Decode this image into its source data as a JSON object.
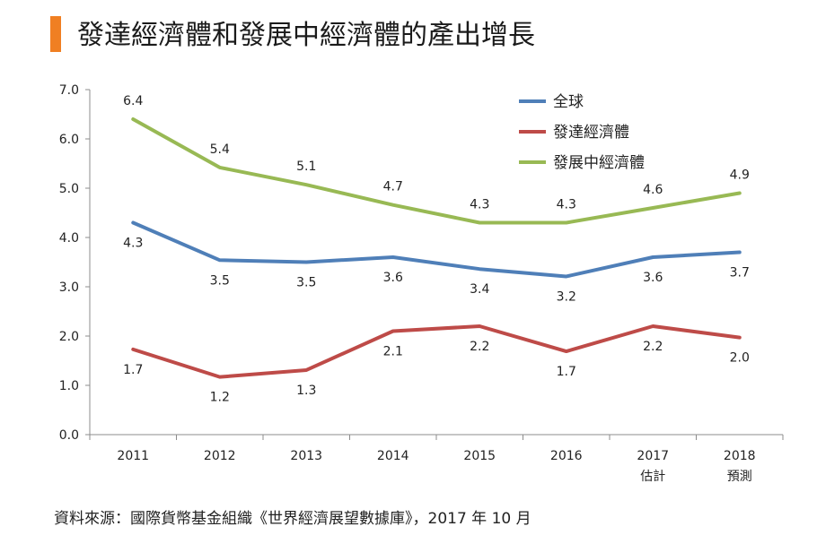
{
  "header": {
    "title": "發達經濟體和發展中經濟體的產出增長",
    "accent_color": "#f07f22"
  },
  "source": "資料來源：國際貨幣基金組織《世界經濟展望數據庫》，2017 年 10 月",
  "chart_data": {
    "type": "line",
    "title": "發達經濟體和發展中經濟體的產出增長",
    "xlabel": "",
    "ylabel": "",
    "categories": [
      "2011",
      "2012",
      "2013",
      "2014",
      "2015",
      "2016",
      "2017",
      "2018"
    ],
    "category_sublabels": [
      "",
      "",
      "",
      "",
      "",
      "",
      "估計",
      "預測"
    ],
    "ylim": [
      0,
      7
    ],
    "yticks": [
      "0.0",
      "1.0",
      "2.0",
      "3.0",
      "4.0",
      "5.0",
      "6.0",
      "7.0"
    ],
    "grid": false,
    "legend_position": "top-right",
    "series": [
      {
        "name": "全球",
        "color": "#4f7fb8",
        "values": [
          4.3,
          3.54,
          3.5,
          3.6,
          3.36,
          3.21,
          3.6,
          3.7
        ],
        "labels": [
          "4.3",
          "3.5",
          "3.5",
          "3.6",
          "3.4",
          "3.2",
          "3.6",
          "3.7"
        ],
        "label_position": "below"
      },
      {
        "name": "發達經濟體",
        "color": "#be4b48",
        "values": [
          1.73,
          1.17,
          1.31,
          2.1,
          2.2,
          1.69,
          2.2,
          1.97
        ],
        "labels": [
          "1.7",
          "1.2",
          "1.3",
          "2.1",
          "2.2",
          "1.7",
          "2.2",
          "2.0"
        ],
        "label_position": "below"
      },
      {
        "name": "發展中經濟體",
        "color": "#98b954",
        "values": [
          6.4,
          5.42,
          5.07,
          4.66,
          4.3,
          4.3,
          4.6,
          4.9
        ],
        "labels": [
          "6.4",
          "5.4",
          "5.1",
          "4.7",
          "4.3",
          "4.3",
          "4.6",
          "4.9"
        ],
        "label_position": "above"
      }
    ]
  }
}
